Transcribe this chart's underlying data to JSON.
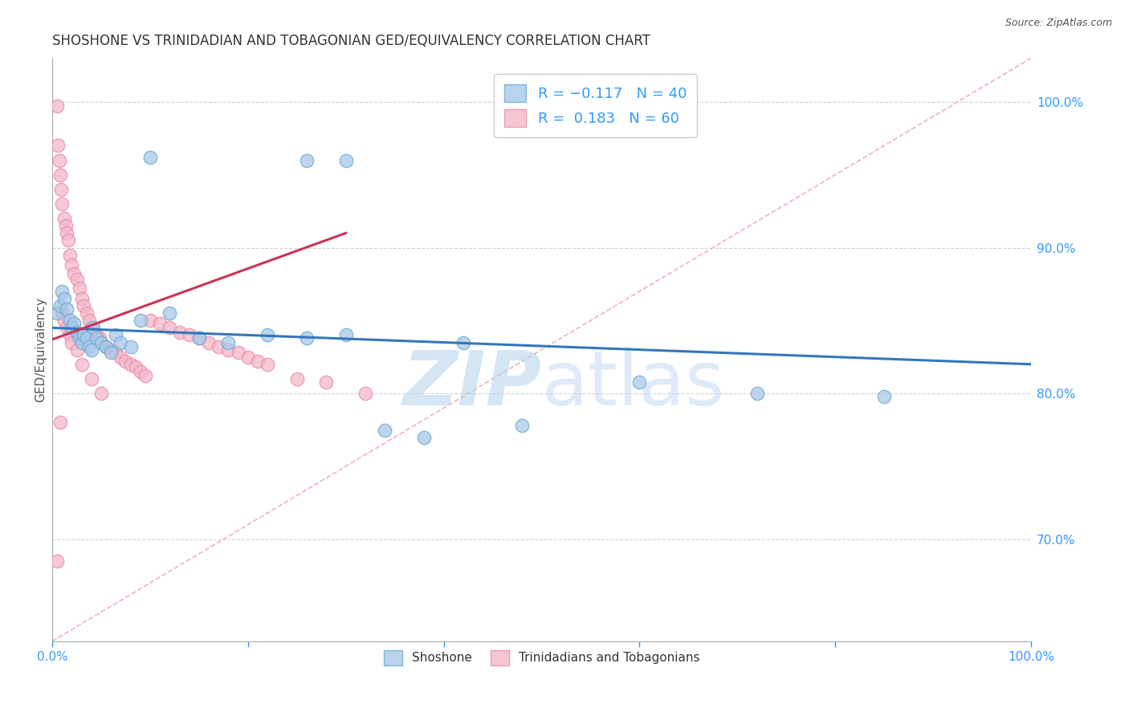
{
  "title": "SHOSHONE VS TRINIDADIAN AND TOBAGONIAN GED/EQUIVALENCY CORRELATION CHART",
  "source": "Source: ZipAtlas.com",
  "ylabel": "GED/Equivalency",
  "legend_blue_label": "R = -0.117   N = 40",
  "legend_pink_label": "R =  0.183   N = 60",
  "legend_label1": "Shoshone",
  "legend_label2": "Trinidadians and Tobagonians",
  "blue_color": "#a8c8e8",
  "blue_edge_color": "#6aaad4",
  "pink_color": "#f4b8c8",
  "pink_edge_color": "#e88aaa",
  "blue_line_color": "#3377bb",
  "pink_line_color": "#cc3355",
  "diag_line_color": "#e8a0b0",
  "background_color": "#ffffff",
  "grid_color": "#cccccc",
  "axis_label_color": "#3399ff",
  "watermark_zip_color": "#b8d4ee",
  "watermark_atlas_color": "#c8ddf4",
  "blue_x": [
    0.005,
    0.008,
    0.01,
    0.012,
    0.015,
    0.018,
    0.02,
    0.022,
    0.025,
    0.028,
    0.03,
    0.032,
    0.035,
    0.038,
    0.04,
    0.042,
    0.045,
    0.05,
    0.055,
    0.06,
    0.065,
    0.07,
    0.08,
    0.09,
    0.1,
    0.12,
    0.15,
    0.18,
    0.22,
    0.26,
    0.3,
    0.34,
    0.26,
    0.3,
    0.42,
    0.48,
    0.6,
    0.72,
    0.85,
    0.38
  ],
  "blue_y": [
    0.855,
    0.86,
    0.87,
    0.865,
    0.858,
    0.85,
    0.845,
    0.848,
    0.842,
    0.838,
    0.835,
    0.84,
    0.838,
    0.832,
    0.83,
    0.845,
    0.838,
    0.835,
    0.832,
    0.828,
    0.84,
    0.835,
    0.832,
    0.85,
    0.962,
    0.855,
    0.838,
    0.835,
    0.84,
    0.838,
    0.84,
    0.775,
    0.96,
    0.96,
    0.835,
    0.778,
    0.808,
    0.8,
    0.798,
    0.77
  ],
  "pink_x": [
    0.005,
    0.006,
    0.007,
    0.008,
    0.009,
    0.01,
    0.012,
    0.014,
    0.015,
    0.016,
    0.018,
    0.02,
    0.022,
    0.025,
    0.028,
    0.03,
    0.032,
    0.035,
    0.038,
    0.04,
    0.042,
    0.045,
    0.048,
    0.05,
    0.055,
    0.06,
    0.065,
    0.07,
    0.075,
    0.08,
    0.085,
    0.09,
    0.095,
    0.1,
    0.11,
    0.12,
    0.13,
    0.14,
    0.15,
    0.16,
    0.17,
    0.18,
    0.19,
    0.2,
    0.21,
    0.22,
    0.25,
    0.28,
    0.32,
    0.01,
    0.012,
    0.015,
    0.018,
    0.02,
    0.025,
    0.03,
    0.04,
    0.05,
    0.005,
    0.008
  ],
  "pink_y": [
    0.997,
    0.97,
    0.96,
    0.95,
    0.94,
    0.93,
    0.92,
    0.915,
    0.91,
    0.905,
    0.895,
    0.888,
    0.882,
    0.878,
    0.872,
    0.865,
    0.86,
    0.855,
    0.85,
    0.845,
    0.842,
    0.84,
    0.838,
    0.835,
    0.832,
    0.83,
    0.828,
    0.825,
    0.822,
    0.82,
    0.818,
    0.815,
    0.812,
    0.85,
    0.848,
    0.845,
    0.842,
    0.84,
    0.838,
    0.835,
    0.832,
    0.83,
    0.828,
    0.825,
    0.822,
    0.82,
    0.81,
    0.808,
    0.8,
    0.855,
    0.85,
    0.845,
    0.84,
    0.835,
    0.83,
    0.82,
    0.81,
    0.8,
    0.685,
    0.78
  ],
  "xlim": [
    0.0,
    1.0
  ],
  "ylim": [
    0.63,
    1.03
  ],
  "yticks": [
    0.7,
    0.8,
    0.9,
    1.0
  ],
  "ytick_labels": [
    "70.0%",
    "80.0%",
    "90.0%",
    "100.0%"
  ]
}
